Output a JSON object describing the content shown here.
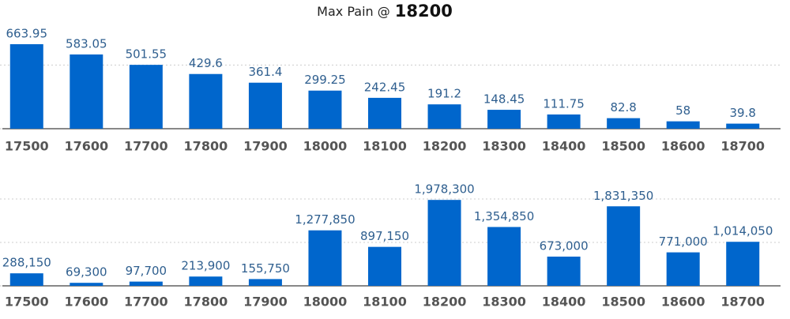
{
  "header": {
    "label": "Max Pain @",
    "strike": "18200"
  },
  "chart_data": [
    {
      "type": "bar",
      "color": "#0066cc",
      "categories": [
        "17500",
        "17600",
        "17700",
        "17800",
        "17900",
        "18000",
        "18100",
        "18200",
        "18300",
        "18400",
        "18500",
        "18600",
        "18700"
      ],
      "values": [
        663.95,
        583.05,
        501.55,
        429.6,
        361.4,
        299.25,
        242.45,
        191.2,
        148.45,
        111.75,
        82.8,
        58,
        39.8
      ],
      "ylim": [
        0,
        800
      ],
      "yticks": [
        0,
        500
      ],
      "grid": true
    },
    {
      "type": "bar",
      "color": "#0066cc",
      "categories": [
        "17500",
        "17600",
        "17700",
        "17800",
        "17900",
        "18000",
        "18100",
        "18200",
        "18300",
        "18400",
        "18500",
        "18600",
        "18700"
      ],
      "values": [
        288150,
        69300,
        97700,
        213900,
        155750,
        1277850,
        897150,
        1978300,
        1354850,
        673000,
        1831350,
        771000,
        1014050
      ],
      "value_labels": [
        "288,150",
        "69,300",
        "97,700",
        "213,900",
        "155,750",
        "1,277,850",
        "897,150",
        "1,978,300",
        "1,354,850",
        "673,000",
        "1,831,350",
        "771,000",
        "1,014,050"
      ],
      "ylim": [
        0,
        2400000
      ],
      "yticks": [
        0,
        1000000,
        2000000
      ],
      "grid": true
    }
  ]
}
